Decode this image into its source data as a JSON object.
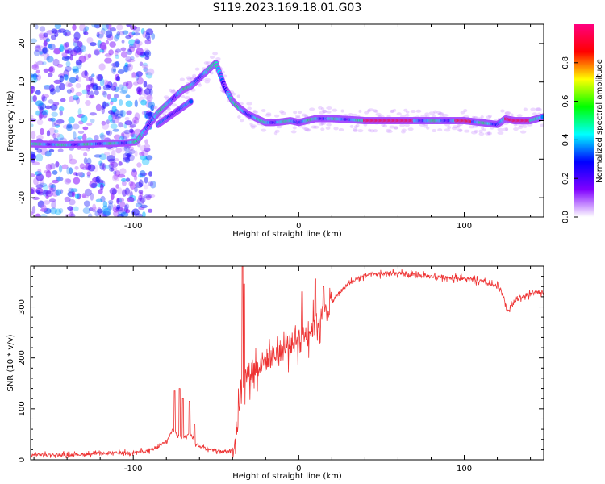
{
  "title": "S119.2023.169.18.01.G03",
  "charts": {
    "spectrogram": {
      "type": "heatmap",
      "xlabel": "Height of straight line (km)",
      "ylabel": "Frequency (Hz)",
      "xlim": [
        -162,
        148
      ],
      "ylim": [
        -25,
        25
      ],
      "xticks": [
        -100,
        0,
        100
      ],
      "yticks": [
        -20,
        -10,
        0,
        10,
        20
      ],
      "colorbar": {
        "label": "Normalized spectral amplitude",
        "range": [
          0,
          1
        ],
        "ticks": [
          0.0,
          0.2,
          0.4,
          0.6,
          0.8
        ],
        "colormap": [
          "#ffffff",
          "#8000ff",
          "#0000ff",
          "#00ffff",
          "#00ff00",
          "#ffff00",
          "#ff0000",
          "#ff0080"
        ]
      },
      "ridge": {
        "x": [
          -162,
          -140,
          -120,
          -105,
          -98,
          -92,
          -85,
          -80,
          -75,
          -70,
          -65,
          -60,
          -55,
          -50,
          -45,
          -40,
          -35,
          -30,
          -25,
          -20,
          -15,
          -10,
          -5,
          0,
          10,
          20,
          30,
          40,
          50,
          60,
          70,
          80,
          90,
          100,
          110,
          120,
          125,
          130,
          140,
          148
        ],
        "y": [
          -6,
          -6.3,
          -6,
          -5.8,
          -5.5,
          -2,
          2,
          4,
          6,
          8,
          9,
          11,
          13,
          15,
          9,
          5,
          3,
          1.5,
          0.5,
          -0.5,
          -0.5,
          -0.3,
          0,
          -0.5,
          0.5,
          0.5,
          0.3,
          0,
          0,
          0,
          0,
          0,
          0,
          0,
          -0.5,
          -1,
          0.5,
          0,
          0,
          1
        ]
      },
      "secondary_ridge": {
        "x": [
          -85,
          -80,
          -75,
          -70,
          -65
        ],
        "y": [
          -1,
          0.5,
          2,
          3.5,
          5
        ]
      }
    },
    "snr": {
      "type": "line",
      "xlabel": "Height of straight line (km)",
      "ylabel": "SNR (10 * v/v)",
      "xlim": [
        -162,
        148
      ],
      "ylim": [
        0,
        380
      ],
      "xticks": [
        -100,
        0,
        100
      ],
      "yticks": [
        0,
        100,
        200,
        300
      ],
      "color": "#ee3333",
      "envelope": {
        "x": [
          -162,
          -140,
          -120,
          -100,
          -90,
          -85,
          -80,
          -76,
          -72,
          -70,
          -66,
          -62,
          -58,
          -52,
          -46,
          -40,
          -37,
          -35,
          -33,
          -30,
          -25,
          -20,
          -15,
          -10,
          -5,
          0,
          5,
          10,
          15,
          20,
          25,
          30,
          35,
          40,
          50,
          60,
          70,
          80,
          90,
          100,
          110,
          120,
          124,
          126,
          128,
          132,
          140,
          148
        ],
        "y": [
          10,
          10,
          12,
          15,
          18,
          25,
          35,
          60,
          45,
          40,
          55,
          30,
          25,
          20,
          15,
          20,
          70,
          140,
          160,
          170,
          185,
          195,
          205,
          215,
          225,
          240,
          250,
          265,
          285,
          310,
          330,
          345,
          355,
          362,
          365,
          365,
          362,
          360,
          358,
          355,
          350,
          340,
          320,
          290,
          300,
          315,
          325,
          330
        ]
      },
      "noise": [
        {
          "x": [
            -162,
            -40
          ],
          "amp": 7
        },
        {
          "x": [
            -40,
            20
          ],
          "amp": 55
        },
        {
          "x": [
            20,
            148
          ],
          "amp": 10
        }
      ],
      "spikes": [
        {
          "x": -75,
          "y": 135
        },
        {
          "x": -72,
          "y": 140
        },
        {
          "x": -70,
          "y": 120
        },
        {
          "x": -66,
          "y": 115
        },
        {
          "x": -63,
          "y": 70
        },
        {
          "x": -34,
          "y": 380
        },
        {
          "x": -33,
          "y": 345
        },
        {
          "x": 10,
          "y": 355
        },
        {
          "x": 2,
          "y": 330
        },
        {
          "x": 15,
          "y": 340
        }
      ]
    }
  }
}
